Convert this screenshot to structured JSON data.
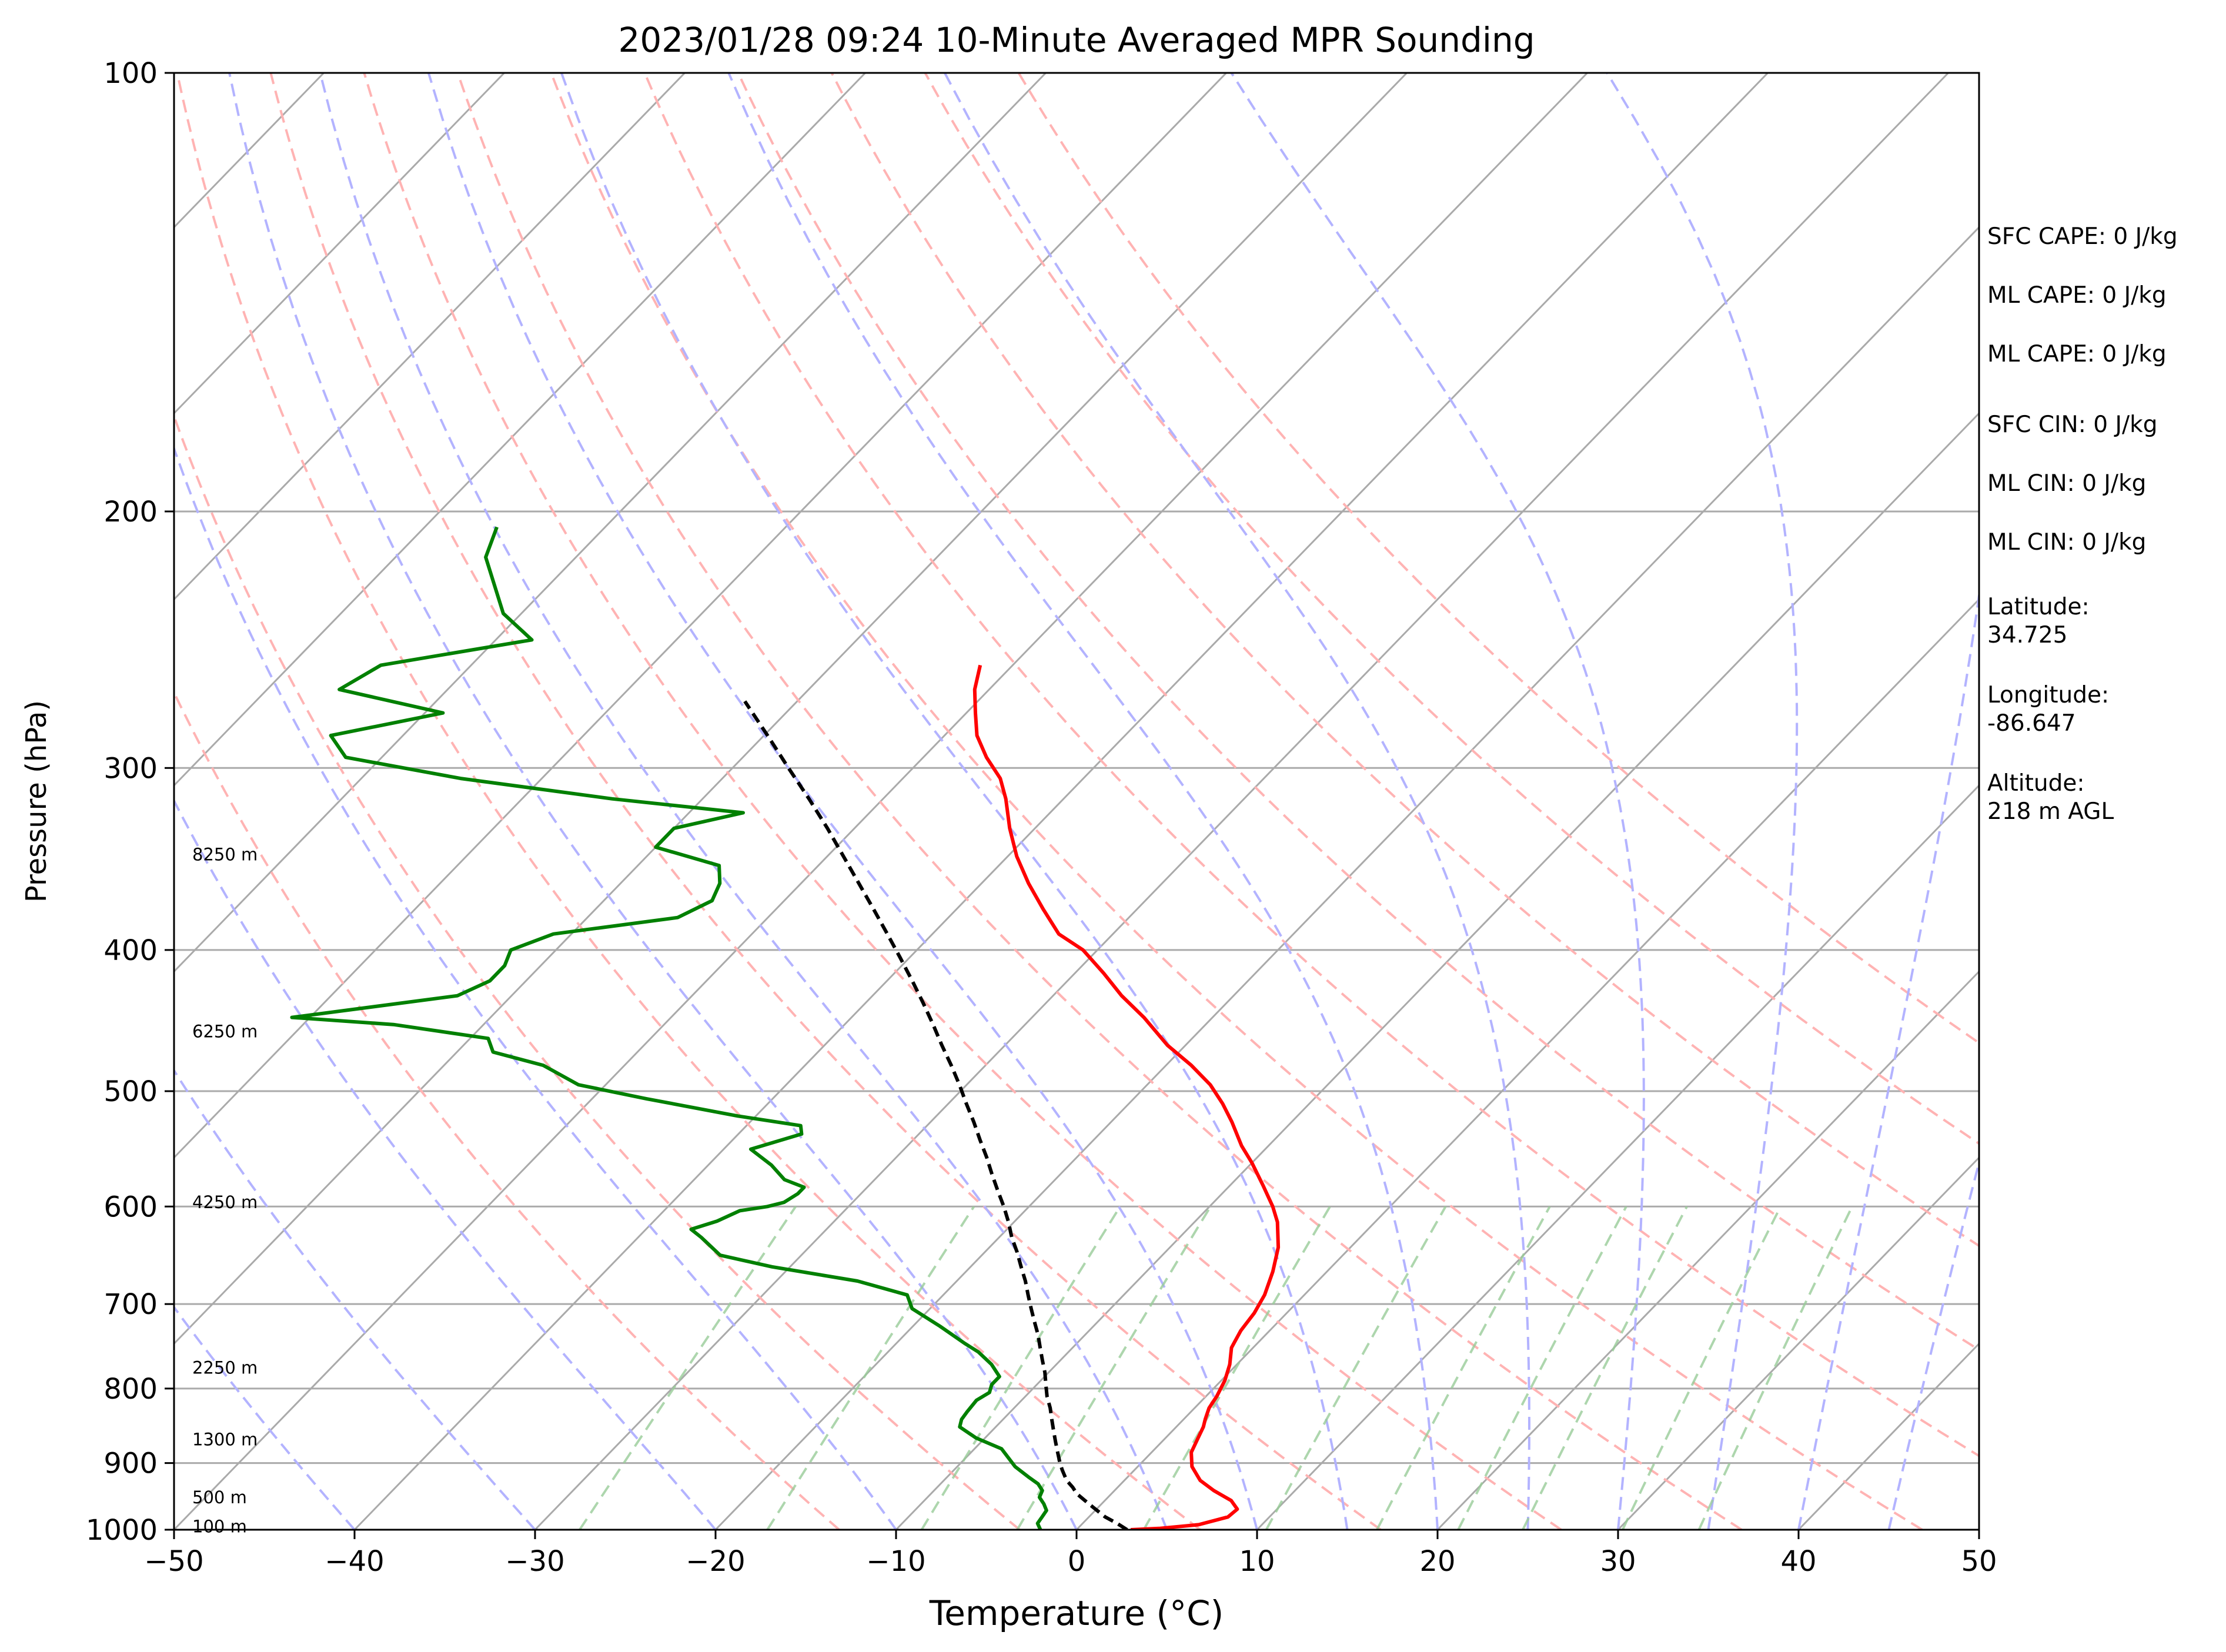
{
  "chart_data": {
    "type": "line",
    "title": "2023/01/28 09:24 10-Minute Averaged MPR Sounding",
    "xlabel": "Temperature (°C)",
    "ylabel": "Pressure (hPa)",
    "xlim": [
      -50,
      50
    ],
    "ylim": [
      1000,
      100
    ],
    "y_scale": "log",
    "skew": "skew-T log-P",
    "x_ticks": [
      "−50",
      "−40",
      "−30",
      "−20",
      "−10",
      "0",
      "10",
      "20",
      "30",
      "40",
      "50"
    ],
    "x_tick_values": [
      -50,
      -40,
      -30,
      -20,
      -10,
      0,
      10,
      20,
      30,
      40,
      50
    ],
    "y_ticks": [
      "100",
      "200",
      "300",
      "400",
      "500",
      "600",
      "700",
      "800",
      "900",
      "1000"
    ],
    "y_tick_values": [
      100,
      200,
      300,
      400,
      500,
      600,
      700,
      800,
      900,
      1000
    ],
    "grid": true,
    "background_lines": {
      "isotherms": {
        "color": "#aaaaaa",
        "values": [
          -150,
          -140,
          -130,
          -120,
          -110,
          -100,
          -90,
          -80,
          -70,
          -60,
          -50,
          -40,
          -30,
          -20,
          -10,
          0,
          10,
          20,
          30,
          40,
          50
        ]
      },
      "dry_adiabats": {
        "color": "#ffb3b3",
        "theta_k": [
          260,
          270,
          280,
          290,
          300,
          310,
          320,
          330,
          340,
          350,
          360,
          370
        ]
      },
      "moist_adiabats": {
        "color": "#b3b3ff",
        "t_surface_c": [
          -40,
          -30,
          -20,
          -10,
          0,
          5,
          10,
          15,
          20,
          25,
          30,
          35,
          40,
          45,
          50
        ]
      },
      "mixing_ratio": {
        "color": "#99cc99",
        "g_per_kg": [
          0.4,
          1,
          2,
          3,
          5,
          8,
          12,
          16,
          20,
          28,
          36
        ]
      }
    },
    "series": [
      {
        "color": "#ff0000",
        "points": [
          [
            3.0,
            1000
          ],
          [
            4.5,
            998
          ],
          [
            6.5,
            992
          ],
          [
            7.7,
            980
          ],
          [
            7.8,
            968
          ],
          [
            7.0,
            955
          ],
          [
            5.5,
            940
          ],
          [
            4.2,
            925
          ],
          [
            3.0,
            905
          ],
          [
            2.2,
            885
          ],
          [
            1.8,
            865
          ],
          [
            1.5,
            850
          ],
          [
            1.2,
            840
          ],
          [
            0.8,
            825
          ],
          [
            0.6,
            810
          ],
          [
            0.2,
            790
          ],
          [
            -0.4,
            770
          ],
          [
            -1.2,
            750
          ],
          [
            -1.6,
            730
          ],
          [
            -1.8,
            710
          ],
          [
            -2.2,
            690
          ],
          [
            -3.0,
            665
          ],
          [
            -4.0,
            640
          ],
          [
            -5.4,
            615
          ],
          [
            -6.5,
            600
          ],
          [
            -8.2,
            580
          ],
          [
            -10.0,
            560
          ],
          [
            -11.5,
            545
          ],
          [
            -13.3,
            525
          ],
          [
            -14.8,
            510
          ],
          [
            -16.5,
            495
          ],
          [
            -18.6,
            480
          ],
          [
            -21.0,
            465
          ],
          [
            -23.8,
            445
          ],
          [
            -26.2,
            430
          ],
          [
            -28.4,
            415
          ],
          [
            -30.8,
            400
          ],
          [
            -33.0,
            390
          ],
          [
            -35.2,
            375
          ],
          [
            -37.4,
            360
          ],
          [
            -39.5,
            345
          ],
          [
            -41.4,
            330
          ],
          [
            -43.2,
            315
          ],
          [
            -44.6,
            305
          ],
          [
            -46.5,
            295
          ],
          [
            -48.2,
            285
          ],
          [
            -49.5,
            275
          ],
          [
            -50.8,
            265
          ],
          [
            -51.8,
            255
          ]
        ]
      },
      {
        "color": "#008000",
        "points": [
          [
            -2.0,
            1000
          ],
          [
            -2.5,
            990
          ],
          [
            -2.6,
            980
          ],
          [
            -2.7,
            970
          ],
          [
            -3.2,
            960
          ],
          [
            -3.8,
            950
          ],
          [
            -4.0,
            940
          ],
          [
            -4.6,
            930
          ],
          [
            -5.5,
            920
          ],
          [
            -6.8,
            905
          ],
          [
            -8.5,
            880
          ],
          [
            -10.5,
            865
          ],
          [
            -12.0,
            850
          ],
          [
            -12.3,
            840
          ],
          [
            -12.4,
            830
          ],
          [
            -12.5,
            815
          ],
          [
            -12.2,
            805
          ],
          [
            -12.5,
            795
          ],
          [
            -12.5,
            785
          ],
          [
            -13.6,
            770
          ],
          [
            -15.0,
            755
          ],
          [
            -16.2,
            745
          ],
          [
            -18.5,
            725
          ],
          [
            -21.0,
            705
          ],
          [
            -22.0,
            690
          ],
          [
            -25.5,
            675
          ],
          [
            -31.0,
            660
          ],
          [
            -34.5,
            648
          ],
          [
            -36.5,
            630
          ],
          [
            -37.5,
            622
          ],
          [
            -36.5,
            614
          ],
          [
            -35.8,
            604
          ],
          [
            -34.5,
            600
          ],
          [
            -33.8,
            596
          ],
          [
            -33.5,
            588
          ],
          [
            -33.5,
            582
          ],
          [
            -35.0,
            575
          ],
          [
            -36.5,
            562
          ],
          [
            -38.5,
            548
          ],
          [
            -36.5,
            535
          ],
          [
            -37.0,
            528
          ],
          [
            -41.0,
            520
          ],
          [
            -47.0,
            506
          ],
          [
            -51.5,
            495
          ],
          [
            -54.5,
            480
          ],
          [
            -58.0,
            470
          ],
          [
            -59.0,
            460
          ],
          [
            -65.0,
            450
          ],
          [
            -71.0,
            445
          ],
          [
            -63.0,
            430
          ],
          [
            -62.0,
            420
          ],
          [
            -62.0,
            410
          ],
          [
            -62.5,
            400
          ],
          [
            -61.0,
            390
          ],
          [
            -55.0,
            380
          ],
          [
            -54.0,
            370
          ],
          [
            -54.5,
            360
          ],
          [
            -55.5,
            350
          ],
          [
            -60.0,
            340
          ],
          [
            -60.0,
            330
          ],
          [
            -57.0,
            322
          ],
          [
            -65.0,
            315
          ],
          [
            -74.5,
            305
          ],
          [
            -82.0,
            295
          ],
          [
            -84.0,
            285
          ],
          [
            -79.0,
            275
          ],
          [
            -86.0,
            265
          ],
          [
            -85.0,
            255
          ],
          [
            -78.0,
            245
          ],
          [
            -81.0,
            235
          ],
          [
            -85.0,
            215
          ],
          [
            -86.0,
            205
          ]
        ]
      },
      {
        "color": "#000000",
        "style": "dashed",
        "points": [
          [
            2.8,
            1000
          ],
          [
            1.9,
            990
          ],
          [
            0.9,
            980
          ],
          [
            -0.3,
            965
          ],
          [
            -1.1,
            955
          ],
          [
            -1.9,
            945
          ],
          [
            -2.5,
            935
          ],
          [
            -3.2,
            925
          ],
          [
            -4.0,
            910
          ],
          [
            -4.5,
            900
          ],
          [
            -5.2,
            885
          ],
          [
            -5.9,
            870
          ],
          [
            -6.6,
            855
          ],
          [
            -7.3,
            840
          ],
          [
            -8.0,
            825
          ],
          [
            -8.8,
            810
          ],
          [
            -9.5,
            795
          ],
          [
            -10.2,
            780
          ],
          [
            -11.0,
            765
          ],
          [
            -11.8,
            750
          ],
          [
            -12.6,
            735
          ],
          [
            -13.5,
            720
          ],
          [
            -14.4,
            705
          ],
          [
            -15.3,
            690
          ],
          [
            -16.2,
            675
          ],
          [
            -17.2,
            660
          ],
          [
            -18.2,
            645
          ],
          [
            -19.3,
            630
          ],
          [
            -20.3,
            615
          ],
          [
            -21.4,
            600
          ],
          [
            -22.6,
            585
          ],
          [
            -23.8,
            570
          ],
          [
            -25.0,
            555
          ],
          [
            -26.3,
            540
          ],
          [
            -27.6,
            525
          ],
          [
            -29.0,
            510
          ],
          [
            -30.4,
            495
          ],
          [
            -31.9,
            480
          ],
          [
            -33.5,
            465
          ],
          [
            -35.1,
            450
          ],
          [
            -36.8,
            435
          ],
          [
            -38.6,
            420
          ],
          [
            -40.5,
            405
          ],
          [
            -42.5,
            390
          ],
          [
            -44.6,
            375
          ],
          [
            -46.8,
            360
          ],
          [
            -49.1,
            345
          ],
          [
            -51.5,
            330
          ],
          [
            -54.1,
            315
          ],
          [
            -56.9,
            300
          ],
          [
            -59.8,
            285
          ],
          [
            -62.9,
            270
          ]
        ]
      }
    ],
    "height_labels": [
      {
        "label": "100 m",
        "p": 995
      },
      {
        "label": "500 m",
        "p": 950
      },
      {
        "label": "1300 m",
        "p": 867
      },
      {
        "label": "2250 m",
        "p": 774
      },
      {
        "label": "4250 m",
        "p": 596
      },
      {
        "label": "6250 m",
        "p": 455
      },
      {
        "label": "8250 m",
        "p": 344
      }
    ],
    "annotations": [
      "SFC CAPE: 0 J/kg",
      "ML CAPE: 0 J/kg",
      "ML CAPE: 0 J/kg",
      "SFC CIN: 0 J/kg",
      "ML CIN: 0 J/kg",
      "ML CIN: 0 J/kg",
      "Latitude:\n34.725",
      "Longitude:\n-86.647",
      "Altitude:\n218 m AGL"
    ]
  }
}
